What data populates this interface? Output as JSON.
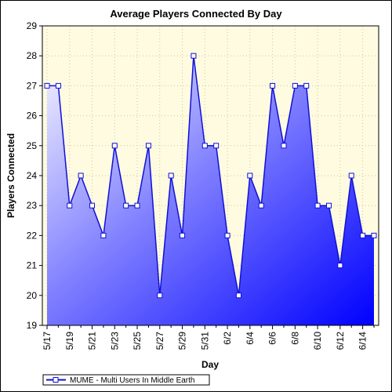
{
  "chart_data": {
    "type": "area",
    "title": "Average Players Connected By Day",
    "xlabel": "Day",
    "ylabel": "Players Connected",
    "ylim": [
      19,
      29
    ],
    "yticks": [
      19,
      20,
      21,
      22,
      23,
      24,
      25,
      26,
      27,
      28,
      29
    ],
    "x": [
      "5/17",
      "5/18",
      "5/19",
      "5/20",
      "5/21",
      "5/22",
      "5/23",
      "5/24",
      "5/25",
      "5/26",
      "5/27",
      "5/28",
      "5/29",
      "5/30",
      "5/31",
      "6/1",
      "6/2",
      "6/3",
      "6/4",
      "6/5",
      "6/6",
      "6/7",
      "6/8",
      "6/9",
      "6/10",
      "6/11",
      "6/12",
      "6/13",
      "6/14",
      "6/15"
    ],
    "xtick_labels": [
      "5/17",
      "5/19",
      "5/21",
      "5/23",
      "5/25",
      "5/27",
      "5/29",
      "5/31",
      "6/2",
      "6/4",
      "6/6",
      "6/8",
      "6/10",
      "6/12",
      "6/14"
    ],
    "series": [
      {
        "name": "MUME - Multi Users In Middle Earth",
        "values": [
          27,
          27,
          23,
          24,
          23,
          22,
          25,
          23,
          23,
          25,
          20,
          24,
          22,
          28,
          25,
          25,
          22,
          20,
          24,
          23,
          27,
          25,
          27,
          27,
          23,
          23,
          21,
          24,
          22,
          22
        ]
      }
    ],
    "grid": true,
    "legend_position": "bottom-left",
    "colors": {
      "plot_background": "#fffbe0",
      "line": "#1010d8",
      "fill_top": "#f4f4ff",
      "fill_bottom": "#0000ff",
      "marker_fill": "#ffffff"
    }
  }
}
